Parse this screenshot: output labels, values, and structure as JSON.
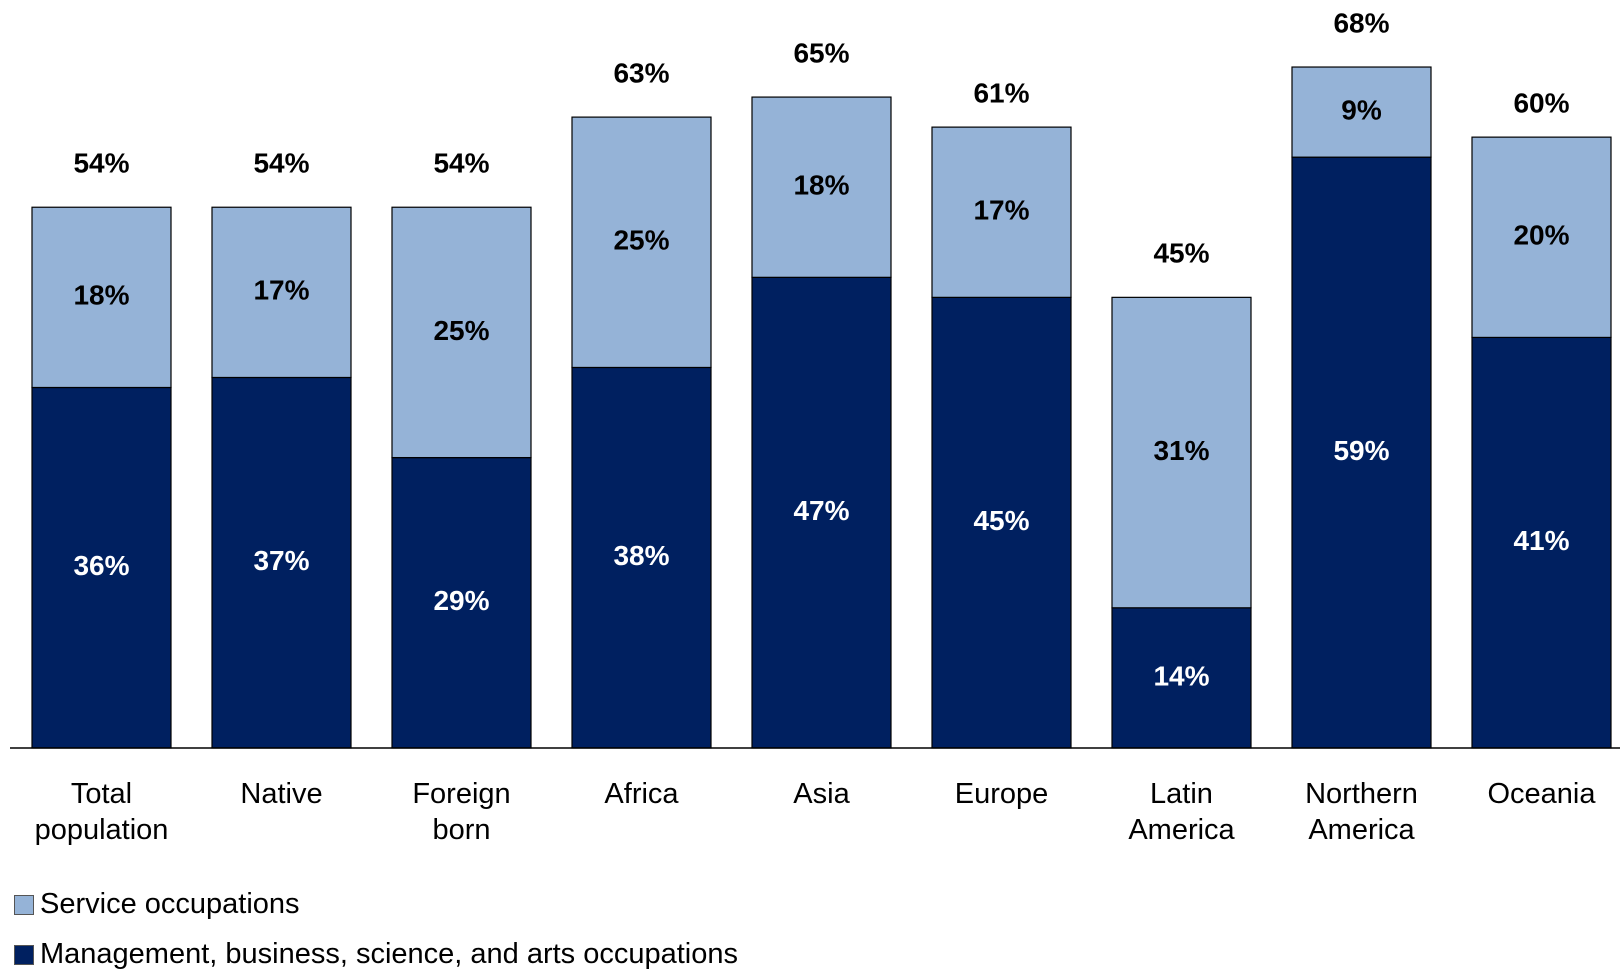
{
  "chart_data": {
    "type": "stacked_bar",
    "categories": [
      "Total population",
      "Native",
      "Foreign born",
      "Africa",
      "Asia",
      "Europe",
      "Latin America",
      "Northern America",
      "Oceania"
    ],
    "series": [
      {
        "name": "Management, business, science, and arts occupations",
        "color": "#002060",
        "values": [
          36,
          37,
          29,
          38,
          47,
          45,
          14,
          59,
          41
        ],
        "value_labels": [
          "36%",
          "37%",
          "29%",
          "38%",
          "47%",
          "45%",
          "14%",
          "59%",
          "41%"
        ]
      },
      {
        "name": "Service occupations",
        "color": "#95b3d7",
        "values": [
          18,
          17,
          25,
          25,
          18,
          17,
          31,
          9,
          20
        ],
        "value_labels": [
          "18%",
          "17%",
          "25%",
          "25%",
          "18%",
          "17%",
          "31%",
          "9%",
          "20%"
        ]
      }
    ],
    "totals": [
      54,
      54,
      54,
      63,
      65,
      61,
      45,
      68,
      60
    ],
    "total_labels": [
      "54%",
      "54%",
      "54%",
      "63%",
      "65%",
      "61%",
      "45%",
      "68%",
      "60%"
    ],
    "ylim": [
      0,
      70
    ]
  }
}
